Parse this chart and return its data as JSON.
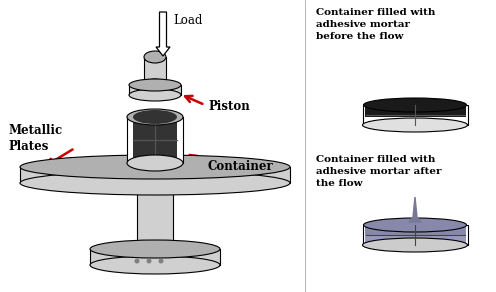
{
  "bg_color": "#ffffff",
  "text_color": "#000000",
  "arrow_color": "#cc0000",
  "gray_light": "#d0d0d0",
  "gray_mid": "#b0b0b0",
  "gray_dark": "#808080",
  "black": "#000000",
  "labels": {
    "load": "Load",
    "piston": "Piston",
    "metallic_plates": "Metallic\nPlates",
    "container": "Container",
    "before_title": "Container filled with\nadhesive mortar\nbefore the flow",
    "after_title": "Container filled with\nadhesive mortar after\nthe flow"
  },
  "fig_w": 4.96,
  "fig_h": 2.92,
  "dpi": 100
}
